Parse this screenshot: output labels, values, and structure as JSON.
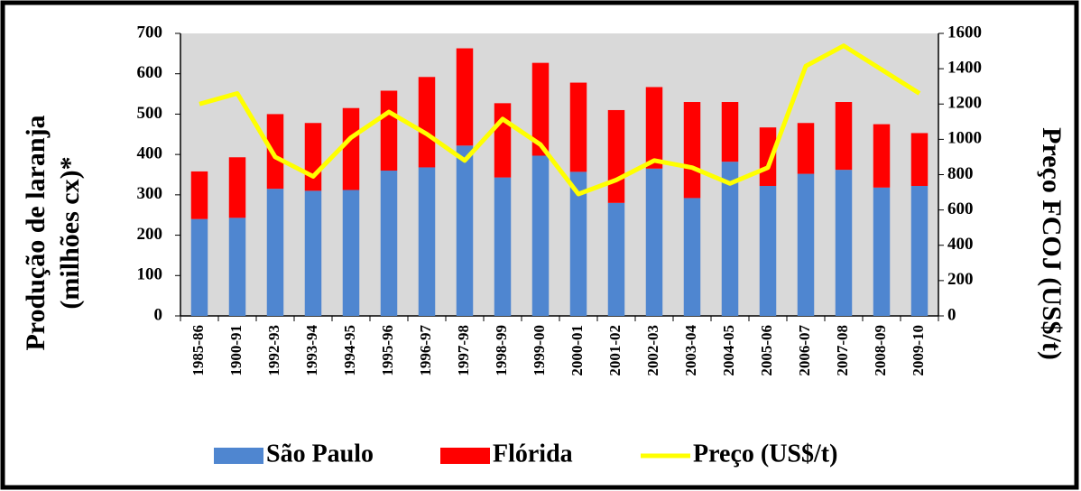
{
  "chart_data": {
    "type": "bar",
    "stacked": true,
    "ylabel": [
      "Produção de laranja",
      "(milhões cx)*"
    ],
    "y2label": "Preço FCOJ (US$/t)",
    "categories": [
      "1985-86",
      "1900-91",
      "1992-93",
      "1993-94",
      "1994-95",
      "1995-96",
      "1996-97",
      "1997-98",
      "1998-99",
      "1999-00",
      "2000-01",
      "2001-02",
      "2002-03",
      "2003-04",
      "2004-05",
      "2005-06",
      "2006-07",
      "2007-08",
      "2008-09",
      "2009-10"
    ],
    "series": [
      {
        "name": "São Paulo",
        "color": "#4f86d0",
        "type": "bar",
        "values": [
          240,
          243,
          315,
          310,
          312,
          360,
          368,
          422,
          343,
          397,
          357,
          280,
          365,
          292,
          382,
          322,
          352,
          362,
          318,
          322
        ]
      },
      {
        "name": "Flórida",
        "color": "#ff0000",
        "type": "bar",
        "values": [
          118,
          150,
          185,
          168,
          203,
          198,
          224,
          241,
          184,
          230,
          221,
          230,
          202,
          238,
          148,
          145,
          126,
          168,
          157,
          131
        ]
      },
      {
        "name": "Preço (US$/t)",
        "color": "#ffff00",
        "type": "line",
        "axis": "y2",
        "values": [
          1200,
          1260,
          900,
          790,
          1010,
          1155,
          1030,
          880,
          1115,
          970,
          690,
          770,
          880,
          840,
          750,
          840,
          1415,
          1530,
          1395,
          1260
        ]
      }
    ],
    "ylim": [
      0,
      700
    ],
    "yticks": [
      0,
      100,
      200,
      300,
      400,
      500,
      600,
      700
    ],
    "y2lim": [
      0,
      1600
    ],
    "y2ticks": [
      0,
      200,
      400,
      600,
      800,
      1000,
      1200,
      1400,
      1600
    ],
    "legend": "bottom"
  }
}
